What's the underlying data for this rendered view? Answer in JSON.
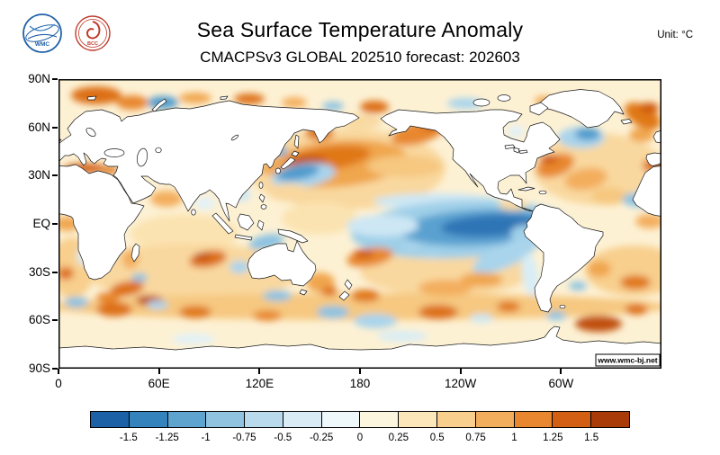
{
  "header": {
    "title": "Sea Surface Temperature Anomaly",
    "subtitle": "CMACPSv3 GLOBAL 202510 forecast: 202603",
    "unit_label": "Unit:",
    "unit_value": "°C",
    "logos": [
      {
        "label": "WMC",
        "color": "#1f5fa8"
      },
      {
        "label": "BCC",
        "color": "#c03a2b"
      }
    ]
  },
  "map": {
    "watermark": "www.wmc-bj.net",
    "y_axis_labels": [
      "90N",
      "60N",
      "30N",
      "EQ",
      "30S",
      "60S",
      "90S"
    ],
    "x_axis_labels": [
      "0",
      "60E",
      "120E",
      "180",
      "120W",
      "60W"
    ]
  },
  "chart_data": {
    "type": "heatmap",
    "title": "Sea Surface Temperature Anomaly",
    "subtitle": "CMACPSv3 GLOBAL 202510 forecast: 202603",
    "model": "CMACPSv3",
    "region": "GLOBAL",
    "init_month": "202510",
    "forecast_month": "202603",
    "unit": "°C",
    "projection": "global lat-lon, longitude 0-360E left to right, latitude 90N top to 90S bottom",
    "lat_ticks": [
      "90N",
      "60N",
      "30N",
      "EQ",
      "30S",
      "60S",
      "90S"
    ],
    "lon_ticks": [
      "0",
      "60E",
      "120E",
      "180",
      "120W",
      "60W"
    ],
    "colorbar_tick_labels": [
      "-1.5",
      "-1.25",
      "-1",
      "-0.75",
      "-0.5",
      "-0.25",
      "0",
      "0.25",
      "0.5",
      "0.75",
      "1",
      "1.25",
      "1.5"
    ],
    "colorbar_colors": [
      "#1c61a5",
      "#3583bd",
      "#5ea4cf",
      "#8fc3df",
      "#b8daec",
      "#d9ecf6",
      "#eff8fb",
      "#fdf6de",
      "#fbe7b9",
      "#f8cf8d",
      "#f3ae5d",
      "#e8872f",
      "#d25f13",
      "#a93b09"
    ],
    "anomaly_features": [
      {
        "region": "equatorial central-eastern Pacific cold tongue (La Nina-like)",
        "sign": "cold",
        "approx_value_c": "-0.5 to -1.5"
      },
      {
        "region": "northwest and central North Pacific 30N-45N",
        "sign": "warm",
        "approx_value_c": "+0.75 to >+1.5"
      },
      {
        "region": "seas east of Japan (Kuroshio-Oyashio)",
        "sign": "cold",
        "approx_value_c": "-0.5 to -1"
      },
      {
        "region": "Gulf of Alaska / northeast Pacific",
        "sign": "warm",
        "approx_value_c": "+0.5 to +1.25"
      },
      {
        "region": "western North Atlantic / Gulf Stream",
        "sign": "warm",
        "approx_value_c": "+0.5 to +1.25"
      },
      {
        "region": "subpolar North Atlantic south of Greenland",
        "sign": "cold",
        "approx_value_c": "-0.5 to -1"
      },
      {
        "region": "Norwegian, Barents and Mediterranean Seas",
        "sign": "warm",
        "approx_value_c": "+0.75 to +1.5"
      },
      {
        "region": "tropical North Atlantic",
        "sign": "cold",
        "approx_value_c": "-0.25 to -0.75"
      },
      {
        "region": "central South Indian Ocean and Agulhas region",
        "sign": "warm",
        "approx_value_c": "+0.75 to >+1.5"
      },
      {
        "region": "Southern Ocean 40S-60S",
        "sign": "warm",
        "approx_value_c": "mostly +0.25 to +1 with scattered cold patches"
      }
    ]
  }
}
